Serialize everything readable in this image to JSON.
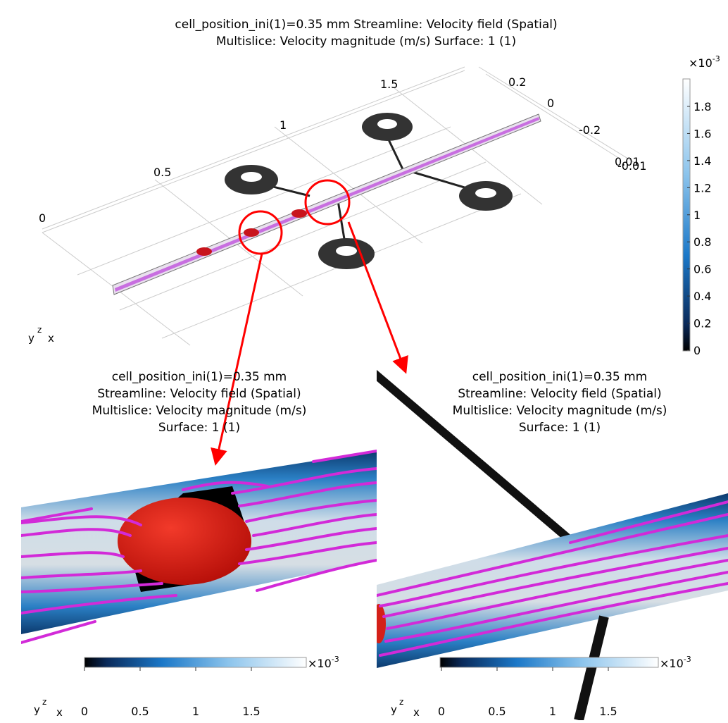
{
  "main": {
    "title": [
      "cell_position_ini(1)=0.35 mm   Streamline: Velocity field (Spatial)",
      "Multislice: Velocity magnitude (m/s)  Surface: 1 (1)"
    ],
    "axis_labels": [
      "1.5",
      "1",
      "0.5",
      "0",
      "0.2",
      "0",
      "-0.2",
      "0.01",
      "-0.01"
    ],
    "colorbar": {
      "multiplier": "×10",
      "exponent": "-3",
      "ticks": [
        "1.8",
        "1.6",
        "1.4",
        "1.2",
        "1",
        "0.8",
        "0.6",
        "0.4",
        "0.2",
        "0"
      ]
    },
    "triad": {
      "y": "y",
      "z": "z",
      "x": "x"
    }
  },
  "panels": [
    {
      "title": [
        "cell_position_ini(1)=0.35 mm",
        "Streamline: Velocity field (Spatial)",
        "Multislice: Velocity magnitude (m/s)",
        "Surface: 1 (1)"
      ],
      "colorbar": {
        "multiplier": "×10",
        "exponent": "-3",
        "ticks": [
          "0",
          "0.5",
          "1",
          "1.5"
        ]
      },
      "triad": {
        "y": "y",
        "z": "z",
        "x": "x"
      }
    },
    {
      "title": [
        "cell_position_ini(1)=0.35 mm",
        "Streamline: Velocity field (Spatial)",
        "Multislice: Velocity magnitude (m/s)",
        "Surface: 1 (1)"
      ],
      "colorbar": {
        "multiplier": "×10",
        "exponent": "-3",
        "ticks": [
          "0",
          "0.5",
          "1",
          "1.5"
        ]
      },
      "triad": {
        "y": "y",
        "z": "z",
        "x": "x"
      }
    }
  ]
}
